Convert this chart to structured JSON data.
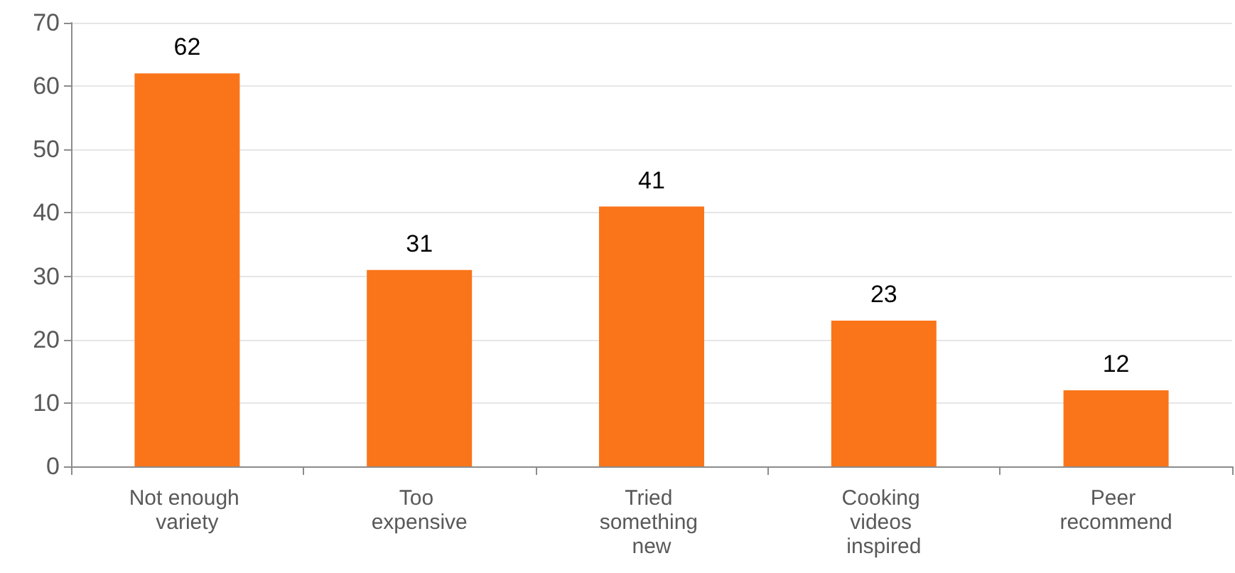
{
  "chart_data": {
    "type": "bar",
    "categories": [
      "Not enough variety",
      "Too expensive",
      "Tried something new",
      "Cooking videos inspired",
      "Peer recommend"
    ],
    "values": [
      62,
      31,
      41,
      23,
      12
    ],
    "color": "#fa7519",
    "ylim": [
      0,
      70
    ],
    "yticks": [
      0,
      10,
      20,
      30,
      40,
      50,
      60,
      70
    ],
    "grid": "y",
    "data_labels": true
  }
}
